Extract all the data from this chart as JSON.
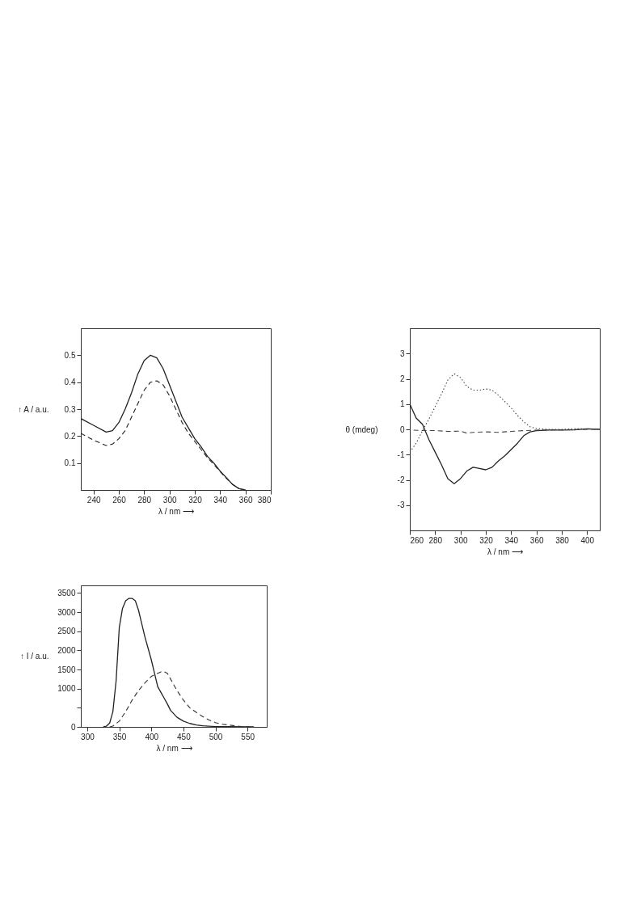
{
  "chart_data": [
    {
      "type": "line",
      "xlabel": "λ / nm ⟶",
      "ylabel": "↑ A / a.u.",
      "xlim": [
        230,
        380
      ],
      "ylim": [
        0,
        0.6
      ],
      "xticks": [
        240,
        260,
        280,
        300,
        320,
        340,
        360,
        380
      ],
      "yticks": [
        0.1,
        0.2,
        0.3,
        0.4,
        0.5
      ],
      "grid": false,
      "series": [
        {
          "color": "#222222",
          "line_style": "solid",
          "x": [
            230,
            240,
            250,
            255,
            260,
            265,
            270,
            275,
            280,
            285,
            290,
            295,
            300,
            305,
            310,
            315,
            320,
            325,
            330,
            335,
            340,
            345,
            350,
            355,
            360
          ],
          "values": [
            0.265,
            0.24,
            0.215,
            0.22,
            0.25,
            0.3,
            0.36,
            0.43,
            0.48,
            0.5,
            0.49,
            0.45,
            0.39,
            0.33,
            0.27,
            0.23,
            0.19,
            0.16,
            0.125,
            0.1,
            0.07,
            0.045,
            0.02,
            0.005,
            0
          ]
        },
        {
          "color": "#222222",
          "line_style": "dashed",
          "x": [
            230,
            240,
            250,
            255,
            260,
            265,
            270,
            275,
            280,
            285,
            290,
            295,
            300,
            305,
            310,
            315,
            320,
            325,
            330,
            335,
            340,
            345,
            350,
            355,
            360
          ],
          "values": [
            0.21,
            0.185,
            0.165,
            0.17,
            0.19,
            0.22,
            0.27,
            0.32,
            0.37,
            0.4,
            0.405,
            0.39,
            0.35,
            0.3,
            0.25,
            0.21,
            0.18,
            0.15,
            0.12,
            0.095,
            0.068,
            0.043,
            0.02,
            0.005,
            0
          ]
        }
      ]
    },
    {
      "type": "line",
      "xlabel": "λ / nm ⟶",
      "ylabel": "θ (mdeg)",
      "xlim": [
        260,
        410
      ],
      "ylim": [
        -4,
        4
      ],
      "xticks": [
        260,
        280,
        300,
        320,
        340,
        360,
        380,
        400
      ],
      "yticks": [
        -3,
        -2,
        -1,
        0,
        1,
        2,
        3
      ],
      "grid": false,
      "series": [
        {
          "color": "#222222",
          "line_style": "solid",
          "x": [
            260,
            265,
            270,
            275,
            280,
            285,
            290,
            295,
            300,
            305,
            310,
            315,
            320,
            325,
            330,
            335,
            340,
            345,
            350,
            355,
            360,
            370,
            380,
            390,
            400,
            410
          ],
          "values": [
            1.0,
            0.45,
            0.2,
            -0.4,
            -0.9,
            -1.4,
            -1.95,
            -2.15,
            -1.95,
            -1.65,
            -1.5,
            -1.55,
            -1.6,
            -1.5,
            -1.25,
            -1.05,
            -0.8,
            -0.55,
            -0.25,
            -0.1,
            -0.05,
            -0.03,
            -0.03,
            -0.02,
            0.02,
            0
          ]
        },
        {
          "color": "#444444",
          "line_style": "dotted",
          "x": [
            260,
            265,
            270,
            275,
            280,
            285,
            290,
            295,
            300,
            305,
            310,
            315,
            320,
            325,
            330,
            335,
            340,
            345,
            350,
            355,
            360,
            370,
            380,
            390,
            400,
            410
          ],
          "values": [
            -0.9,
            -0.55,
            -0.05,
            0.4,
            0.9,
            1.4,
            1.95,
            2.2,
            2.05,
            1.7,
            1.55,
            1.55,
            1.6,
            1.55,
            1.35,
            1.1,
            0.85,
            0.55,
            0.3,
            0.1,
            0.03,
            0,
            0,
            0.02,
            0.02,
            0
          ]
        },
        {
          "color": "#444444",
          "line_style": "dashed",
          "x": [
            263,
            270,
            280,
            290,
            300,
            305,
            310,
            320,
            330,
            340,
            350,
            360,
            380,
            400,
            410
          ],
          "values": [
            -0.03,
            -0.05,
            -0.05,
            -0.08,
            -0.07,
            -0.15,
            -0.12,
            -0.1,
            -0.12,
            -0.08,
            -0.05,
            -0.03,
            -0.02,
            0,
            0
          ]
        }
      ]
    },
    {
      "type": "line",
      "xlabel": "λ / nm ⟶",
      "ylabel": "↑ I / a.u.",
      "xlim": [
        290,
        580
      ],
      "ylim": [
        0,
        3700
      ],
      "xticks": [
        300,
        350,
        400,
        450,
        500,
        550
      ],
      "yticks": [
        0,
        {
          "value": 500,
          "label": null
        },
        1000,
        1500,
        2000,
        2500,
        3000,
        3500
      ],
      "grid": false,
      "series": [
        {
          "color": "#222222",
          "line_style": "solid",
          "x": [
            325,
            330,
            335,
            340,
            345,
            350,
            355,
            360,
            365,
            370,
            375,
            380,
            385,
            390,
            395,
            400,
            405,
            410,
            415,
            420,
            425,
            430,
            440,
            450,
            460,
            470,
            480,
            500,
            520,
            550,
            560
          ],
          "values": [
            0,
            20,
            100,
            400,
            1200,
            2600,
            3100,
            3300,
            3360,
            3360,
            3300,
            3050,
            2700,
            2350,
            2050,
            1750,
            1400,
            1050,
            900,
            750,
            600,
            430,
            250,
            150,
            90,
            50,
            30,
            10,
            10,
            0,
            0
          ]
        },
        {
          "color": "#333333",
          "line_style": "dashed",
          "x": [
            335,
            340,
            350,
            360,
            370,
            380,
            390,
            400,
            410,
            415,
            420,
            425,
            430,
            440,
            450,
            460,
            470,
            480,
            490,
            500,
            510,
            520,
            530,
            540,
            560
          ],
          "values": [
            0,
            20,
            150,
            400,
            700,
            950,
            1150,
            1320,
            1400,
            1440,
            1440,
            1400,
            1250,
            950,
            700,
            500,
            380,
            270,
            180,
            110,
            70,
            50,
            30,
            10,
            0
          ]
        }
      ]
    }
  ]
}
